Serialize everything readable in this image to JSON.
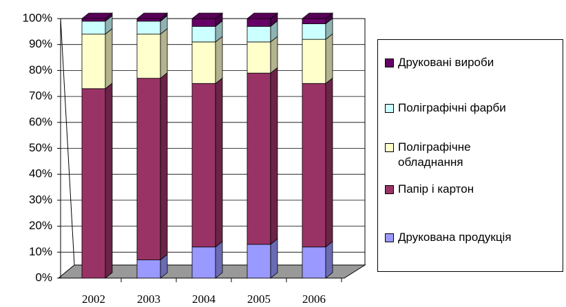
{
  "chart_data": {
    "type": "bar3d_stacked",
    "categories": [
      "2002",
      "2003",
      "2004",
      "2005",
      "2006"
    ],
    "series": [
      {
        "name": "Друкована продукція",
        "color": "#9999ff",
        "values": [
          0,
          7,
          12,
          13,
          12
        ]
      },
      {
        "name": "Папір і картон",
        "color": "#993366",
        "values": [
          73,
          70,
          63,
          66,
          63
        ]
      },
      {
        "name": "Поліграфічне обладнання",
        "color": "#ffffcc",
        "values": [
          21,
          17,
          16,
          12,
          17
        ]
      },
      {
        "name": "Поліграфічні фарби",
        "color": "#ccffff",
        "values": [
          5,
          5,
          6,
          6,
          6
        ]
      },
      {
        "name": "Друковані вироби",
        "color": "#660066",
        "values": [
          1,
          1,
          3,
          3,
          2
        ]
      }
    ],
    "ylim": [
      0,
      100
    ],
    "yticks": [
      {
        "value": 0,
        "label": "0%"
      },
      {
        "value": 10,
        "label": "10%"
      },
      {
        "value": 20,
        "label": "20%"
      },
      {
        "value": 30,
        "label": "30%"
      },
      {
        "value": 40,
        "label": "40%"
      },
      {
        "value": 50,
        "label": "50%"
      },
      {
        "value": 60,
        "label": "60%"
      },
      {
        "value": 70,
        "label": "70%"
      },
      {
        "value": 80,
        "label": "80%"
      },
      {
        "value": 90,
        "label": "90%"
      },
      {
        "value": 100,
        "label": "100%"
      }
    ],
    "grid": true
  }
}
